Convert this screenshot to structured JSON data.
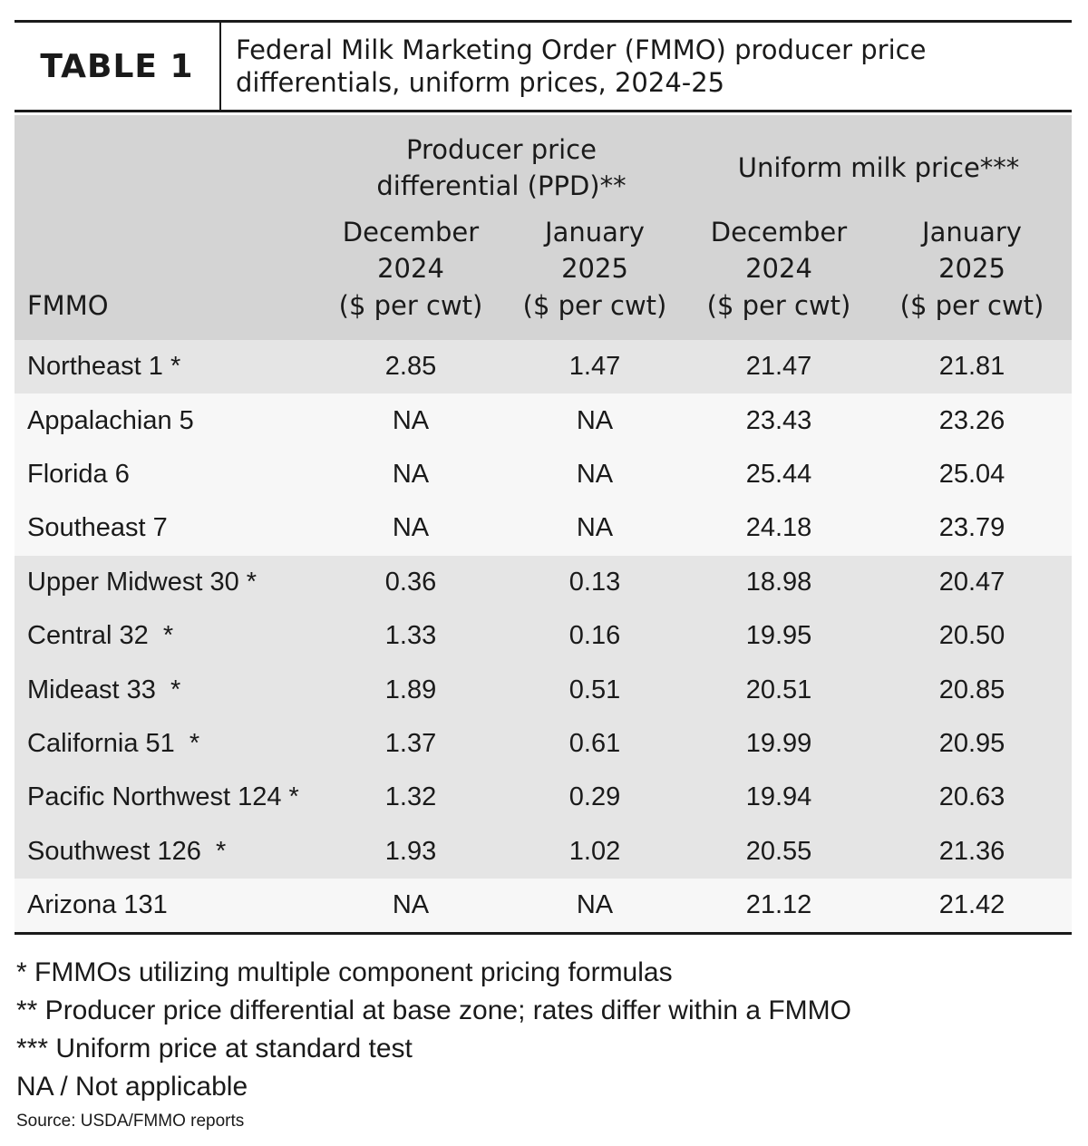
{
  "header": {
    "label": "TABLE 1",
    "title_line1": "Federal Milk Marketing Order (FMMO) producer price",
    "title_line2": "differentials, uniform prices, 2024-25"
  },
  "columns": {
    "group_ppd": "Producer price differential (PPD)**",
    "group_uniform": "Uniform milk price***",
    "dec_2024": "December 2024",
    "jan_2025": "January 2025",
    "fmmo": "FMMO",
    "unit": "($ per cwt)"
  },
  "rows": [
    {
      "region": "Northeast 1 *",
      "ppd_dec": "2.85",
      "ppd_jan": "1.47",
      "uni_dec": "21.47",
      "uni_jan": "21.81"
    },
    {
      "region": "Appalachian 5",
      "ppd_dec": "NA",
      "ppd_jan": "NA",
      "uni_dec": "23.43",
      "uni_jan": "23.26"
    },
    {
      "region": "Florida 6",
      "ppd_dec": "NA",
      "ppd_jan": "NA",
      "uni_dec": "25.44",
      "uni_jan": "25.04"
    },
    {
      "region": "Southeast 7",
      "ppd_dec": "NA",
      "ppd_jan": "NA",
      "uni_dec": "24.18",
      "uni_jan": "23.79"
    },
    {
      "region": "Upper Midwest 30 *",
      "ppd_dec": "0.36",
      "ppd_jan": "0.13",
      "uni_dec": "18.98",
      "uni_jan": "20.47"
    },
    {
      "region": "Central 32  *",
      "ppd_dec": "1.33",
      "ppd_jan": "0.16",
      "uni_dec": "19.95",
      "uni_jan": "20.50"
    },
    {
      "region": "Mideast 33  *",
      "ppd_dec": "1.89",
      "ppd_jan": "0.51",
      "uni_dec": "20.51",
      "uni_jan": "20.85"
    },
    {
      "region": "California 51  *",
      "ppd_dec": "1.37",
      "ppd_jan": "0.61",
      "uni_dec": "19.99",
      "uni_jan": "20.95"
    },
    {
      "region": "Pacific Northwest 124 *",
      "ppd_dec": "1.32",
      "ppd_jan": "0.29",
      "uni_dec": "19.94",
      "uni_jan": "20.63"
    },
    {
      "region": "Southwest 126  *",
      "ppd_dec": "1.93",
      "ppd_jan": "1.02",
      "uni_dec": "20.55",
      "uni_jan": "21.36"
    },
    {
      "region": "Arizona 131",
      "ppd_dec": "NA",
      "ppd_jan": "NA",
      "uni_dec": "21.12",
      "uni_jan": "21.42"
    }
  ],
  "notes": [
    "* FMMOs utilizing multiple component pricing formulas",
    "** Producer price differential at base zone; rates differ within a FMMO",
    "*** Uniform price at standard test",
    "NA / Not applicable"
  ],
  "source": "Source: USDA/FMMO reports",
  "colors": {
    "header_bg": "#d4d4d4",
    "row_shade": "#e5e5e5",
    "row_light": "#f7f7f7",
    "rule": "#1a1a1a"
  }
}
